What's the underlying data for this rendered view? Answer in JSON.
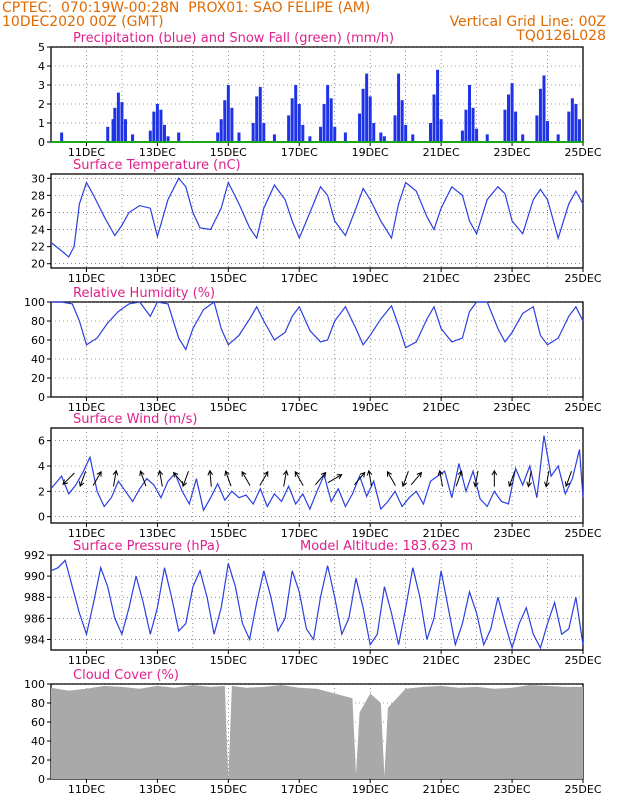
{
  "header": {
    "line1_left": "CPTEC:  070:19W-00:28N  PROX01: SAO FELIPE (AM)",
    "line2_left": "10DEC2020 00Z (GMT)",
    "line2_right": "Vertical Grid Line: 00Z",
    "line3_right": "TQ0126L028"
  },
  "colors": {
    "header": "#e06a00",
    "title": "#e0208c",
    "line": "#2b3fe0",
    "precip": "#1e32e6",
    "snow": "#1aa51a",
    "cloud": "#a9a9a9",
    "arrow": "#000000"
  },
  "x_ticks": [
    "11DEC",
    "13DEC",
    "15DEC",
    "17DEC",
    "19DEC",
    "21DEC",
    "23DEC",
    "25DEC"
  ],
  "chart_data": [
    {
      "type": "bar",
      "title": "Precipitation (blue) and Snow Fall (green) (mm/h)",
      "xlabel": "",
      "ylabel": "",
      "ylim": [
        0,
        5
      ],
      "yticks": [
        0,
        1,
        2,
        3,
        4,
        5
      ],
      "x_range_days": [
        0,
        15
      ],
      "series": [
        {
          "name": "Precipitation (blue)",
          "x": [
            0.3,
            1.6,
            1.75,
            1.8,
            1.9,
            2.0,
            2.1,
            2.3,
            2.8,
            2.9,
            3.0,
            3.1,
            3.2,
            3.3,
            3.6,
            4.7,
            4.8,
            4.9,
            5.0,
            5.1,
            5.3,
            5.7,
            5.8,
            5.9,
            6.0,
            6.3,
            6.7,
            6.8,
            6.9,
            7.0,
            7.1,
            7.3,
            7.6,
            7.7,
            7.8,
            7.9,
            8.0,
            8.3,
            8.7,
            8.8,
            8.9,
            9.0,
            9.1,
            9.3,
            9.4,
            9.7,
            9.8,
            9.9,
            10.0,
            10.2,
            10.7,
            10.8,
            10.9,
            11.0,
            11.6,
            11.7,
            11.8,
            11.9,
            12.0,
            12.3,
            12.8,
            12.9,
            13.0,
            13.1,
            13.3,
            13.7,
            13.8,
            13.9,
            14.0,
            14.3,
            14.6,
            14.7,
            14.8,
            14.9
          ],
          "values": [
            0.5,
            0.8,
            1.2,
            1.8,
            2.6,
            2.1,
            1.2,
            0.4,
            0.6,
            1.6,
            2.0,
            1.7,
            0.9,
            0.3,
            0.5,
            0.5,
            1.2,
            2.2,
            3.0,
            1.8,
            0.5,
            1.0,
            2.4,
            2.9,
            1.0,
            0.4,
            1.4,
            2.3,
            3.0,
            2.0,
            0.9,
            0.3,
            0.8,
            2.0,
            3.0,
            2.3,
            0.8,
            0.5,
            1.5,
            2.8,
            3.6,
            2.4,
            1.0,
            0.5,
            0.3,
            1.4,
            3.6,
            2.2,
            0.9,
            0.4,
            1.0,
            2.5,
            3.8,
            1.2,
            0.6,
            1.7,
            3.0,
            1.8,
            0.7,
            0.4,
            1.7,
            2.5,
            3.1,
            1.6,
            0.4,
            1.4,
            2.8,
            3.5,
            1.1,
            0.4,
            1.6,
            2.3,
            2.0,
            1.2
          ]
        },
        {
          "name": "Snow Fall (green)",
          "x": [
            0,
            15
          ],
          "values": [
            0,
            0
          ]
        }
      ]
    },
    {
      "type": "line",
      "title": "Surface Temperature (nC)",
      "xlabel": "",
      "ylabel": "",
      "ylim": [
        19.5,
        30.5
      ],
      "yticks": [
        20,
        22,
        24,
        26,
        28,
        30
      ],
      "x_range_days": [
        0,
        15
      ],
      "series": [
        {
          "name": "",
          "x": [
            0,
            0.3,
            0.5,
            0.65,
            0.8,
            1.0,
            1.2,
            1.5,
            1.8,
            2.0,
            2.2,
            2.5,
            2.8,
            3.0,
            3.3,
            3.6,
            3.8,
            4.0,
            4.2,
            4.5,
            4.8,
            5.0,
            5.3,
            5.6,
            5.8,
            6.0,
            6.3,
            6.6,
            6.8,
            7.0,
            7.3,
            7.6,
            7.8,
            8.0,
            8.3,
            8.6,
            8.8,
            9.0,
            9.3,
            9.6,
            9.8,
            10.0,
            10.3,
            10.6,
            10.8,
            11.0,
            11.3,
            11.6,
            11.8,
            12.0,
            12.3,
            12.6,
            12.8,
            13.0,
            13.3,
            13.6,
            13.8,
            14.0,
            14.3,
            14.6,
            14.8,
            15.0
          ],
          "values": [
            22.5,
            21.5,
            20.8,
            22.0,
            27.0,
            29.5,
            28.0,
            25.5,
            23.3,
            24.5,
            26.0,
            26.8,
            26.5,
            23.2,
            27.5,
            30.0,
            29.0,
            26.0,
            24.2,
            24.0,
            26.5,
            29.5,
            27.0,
            24.2,
            23.0,
            26.5,
            29.2,
            27.5,
            25.0,
            23.0,
            26.0,
            29.0,
            28.0,
            25.0,
            23.3,
            26.5,
            28.8,
            27.5,
            25.0,
            23.0,
            27.0,
            29.5,
            28.5,
            25.5,
            24.0,
            26.5,
            29.0,
            28.0,
            25.0,
            23.5,
            27.5,
            29.0,
            28.2,
            25.0,
            23.5,
            27.5,
            28.7,
            27.5,
            23.0,
            27.0,
            28.5,
            27.0
          ]
        }
      ]
    },
    {
      "type": "line",
      "title": "Relative Humidity (%)",
      "xlabel": "",
      "ylabel": "",
      "ylim": [
        0,
        100
      ],
      "yticks": [
        0,
        20,
        40,
        60,
        80,
        100
      ],
      "x_range_days": [
        0,
        15
      ],
      "series": [
        {
          "name": "",
          "x": [
            0,
            0.3,
            0.6,
            0.8,
            1.0,
            1.3,
            1.6,
            1.9,
            2.2,
            2.5,
            2.8,
            3.0,
            3.3,
            3.6,
            3.8,
            4.0,
            4.3,
            4.6,
            4.8,
            5.0,
            5.3,
            5.6,
            5.8,
            6.0,
            6.3,
            6.6,
            6.8,
            7.0,
            7.3,
            7.6,
            7.8,
            8.0,
            8.3,
            8.6,
            8.8,
            9.0,
            9.3,
            9.6,
            9.8,
            10.0,
            10.3,
            10.6,
            10.8,
            11.0,
            11.3,
            11.6,
            11.8,
            12.0,
            12.3,
            12.6,
            12.8,
            13.0,
            13.3,
            13.6,
            13.8,
            14.0,
            14.3,
            14.6,
            14.8,
            15.0
          ],
          "values": [
            100,
            100,
            98,
            80,
            55,
            62,
            78,
            90,
            98,
            100,
            85,
            100,
            98,
            62,
            50,
            72,
            92,
            100,
            72,
            55,
            65,
            82,
            95,
            80,
            60,
            68,
            85,
            95,
            70,
            58,
            60,
            80,
            95,
            72,
            55,
            65,
            82,
            96,
            75,
            52,
            58,
            82,
            95,
            72,
            58,
            62,
            90,
            100,
            100,
            72,
            58,
            68,
            88,
            95,
            65,
            55,
            62,
            85,
            95,
            80
          ]
        }
      ]
    },
    {
      "type": "line",
      "title": "Surface Wind (m/s)",
      "xlabel": "",
      "ylabel": "",
      "ylim": [
        -0.5,
        7
      ],
      "yticks": [
        0,
        2,
        4,
        6
      ],
      "x_range_days": [
        0,
        15
      ],
      "series": [
        {
          "name": "",
          "x": [
            0,
            0.3,
            0.5,
            0.7,
            0.9,
            1.1,
            1.3,
            1.5,
            1.7,
            1.9,
            2.1,
            2.3,
            2.5,
            2.7,
            2.9,
            3.1,
            3.3,
            3.5,
            3.7,
            3.9,
            4.1,
            4.3,
            4.5,
            4.7,
            4.9,
            5.1,
            5.3,
            5.5,
            5.7,
            5.9,
            6.1,
            6.3,
            6.5,
            6.7,
            6.9,
            7.1,
            7.3,
            7.5,
            7.7,
            7.9,
            8.1,
            8.3,
            8.5,
            8.7,
            8.9,
            9.1,
            9.3,
            9.5,
            9.7,
            9.9,
            10.1,
            10.3,
            10.5,
            10.7,
            10.9,
            11.1,
            11.3,
            11.5,
            11.7,
            11.9,
            12.1,
            12.3,
            12.5,
            12.7,
            12.9,
            13.1,
            13.3,
            13.5,
            13.7,
            13.9,
            14.1,
            14.3,
            14.5,
            14.7,
            14.9,
            15.0
          ],
          "values": [
            2.2,
            3.2,
            1.8,
            2.5,
            3.5,
            4.7,
            2.0,
            0.8,
            1.5,
            2.8,
            2.0,
            1.2,
            2.2,
            3.0,
            2.5,
            1.5,
            2.8,
            3.4,
            2.0,
            1.0,
            3.0,
            0.5,
            1.5,
            2.6,
            1.3,
            2.0,
            1.5,
            1.7,
            1.0,
            2.2,
            0.8,
            1.8,
            1.2,
            2.4,
            1.0,
            1.8,
            0.6,
            2.0,
            3.3,
            1.2,
            2.2,
            0.8,
            1.8,
            3.2,
            1.6,
            2.8,
            0.6,
            1.2,
            2.0,
            0.8,
            1.5,
            2.0,
            1.0,
            2.8,
            3.2,
            3.6,
            1.5,
            4.2,
            2.0,
            3.6,
            1.4,
            0.8,
            2.0,
            1.2,
            1.0,
            3.8,
            2.5,
            4.0,
            1.5,
            6.4,
            3.2,
            4.0,
            1.8,
            3.0,
            5.3,
            1.5
          ]
        }
      ],
      "wind_arrows": [
        {
          "day": 0.5,
          "deg": 225
        },
        {
          "day": 0.9,
          "deg": 200
        },
        {
          "day": 1.3,
          "deg": 30
        },
        {
          "day": 1.8,
          "deg": 10
        },
        {
          "day": 2.6,
          "deg": 340
        },
        {
          "day": 3.1,
          "deg": 350
        },
        {
          "day": 3.6,
          "deg": 320
        },
        {
          "day": 3.8,
          "deg": 200
        },
        {
          "day": 4.5,
          "deg": 355
        },
        {
          "day": 5.0,
          "deg": 340
        },
        {
          "day": 5.5,
          "deg": 330
        },
        {
          "day": 6.0,
          "deg": 30
        },
        {
          "day": 6.6,
          "deg": 10
        },
        {
          "day": 7.0,
          "deg": 330
        },
        {
          "day": 7.6,
          "deg": 40
        },
        {
          "day": 8.0,
          "deg": 60
        },
        {
          "day": 8.7,
          "deg": 40
        },
        {
          "day": 9.0,
          "deg": 350
        },
        {
          "day": 9.6,
          "deg": 330
        },
        {
          "day": 10.0,
          "deg": 200
        },
        {
          "day": 10.3,
          "deg": 40
        },
        {
          "day": 11.0,
          "deg": 350
        },
        {
          "day": 11.5,
          "deg": 20
        },
        {
          "day": 12.0,
          "deg": 190
        },
        {
          "day": 12.5,
          "deg": 0
        },
        {
          "day": 13.0,
          "deg": 200
        },
        {
          "day": 13.5,
          "deg": 190
        },
        {
          "day": 14.0,
          "deg": 190
        },
        {
          "day": 14.6,
          "deg": 200
        }
      ]
    },
    {
      "type": "line",
      "title": "Surface Pressure (hPa)",
      "annotation": "Model Altitude: 183.623 m",
      "xlabel": "",
      "ylabel": "",
      "ylim": [
        983,
        992
      ],
      "yticks": [
        984,
        986,
        988,
        990,
        992
      ],
      "x_range_days": [
        0,
        15
      ],
      "series": [
        {
          "name": "",
          "x": [
            0,
            0.2,
            0.4,
            0.6,
            0.8,
            1.0,
            1.2,
            1.4,
            1.6,
            1.8,
            2.0,
            2.2,
            2.4,
            2.6,
            2.8,
            3.0,
            3.2,
            3.4,
            3.6,
            3.8,
            4.0,
            4.2,
            4.4,
            4.6,
            4.8,
            5.0,
            5.2,
            5.4,
            5.6,
            5.8,
            6.0,
            6.2,
            6.4,
            6.6,
            6.8,
            7.0,
            7.2,
            7.4,
            7.6,
            7.8,
            8.0,
            8.2,
            8.4,
            8.6,
            8.8,
            9.0,
            9.2,
            9.4,
            9.6,
            9.8,
            10.0,
            10.2,
            10.4,
            10.6,
            10.8,
            11.0,
            11.2,
            11.4,
            11.6,
            11.8,
            12.0,
            12.2,
            12.4,
            12.6,
            12.8,
            13.0,
            13.2,
            13.4,
            13.6,
            13.8,
            14.0,
            14.2,
            14.4,
            14.6,
            14.8,
            15.0
          ],
          "values": [
            990.5,
            990.8,
            991.5,
            989.0,
            986.5,
            984.5,
            987.5,
            990.8,
            989.0,
            986.0,
            984.5,
            987.0,
            990.0,
            987.5,
            984.5,
            987.0,
            990.8,
            988.0,
            984.8,
            985.5,
            989.0,
            990.5,
            988.0,
            984.5,
            987.0,
            991.2,
            989.0,
            985.5,
            984.0,
            987.5,
            990.5,
            988.0,
            984.8,
            986.0,
            990.5,
            988.5,
            985.0,
            984.0,
            988.0,
            991.0,
            988.0,
            984.5,
            986.0,
            989.8,
            987.0,
            983.5,
            984.5,
            989.0,
            986.5,
            983.5,
            987.0,
            990.8,
            988.0,
            984.0,
            986.0,
            990.5,
            987.0,
            983.5,
            985.5,
            988.5,
            986.5,
            983.5,
            985.0,
            988.0,
            985.5,
            983.2,
            985.5,
            987.0,
            984.5,
            983.2,
            985.5,
            987.5,
            984.5,
            985.0,
            988.0,
            983.5
          ]
        }
      ]
    },
    {
      "type": "area",
      "title": "Cloud Cover (%)",
      "xlabel": "",
      "ylabel": "",
      "ylim": [
        0,
        100
      ],
      "yticks": [
        0,
        20,
        40,
        60,
        80,
        100
      ],
      "x_range_days": [
        0,
        15
      ],
      "series": [
        {
          "name": "",
          "x": [
            0,
            0.5,
            1.0,
            1.5,
            2.0,
            2.5,
            3.0,
            3.5,
            4.0,
            4.5,
            4.9,
            5.0,
            5.1,
            5.5,
            6.0,
            6.5,
            7.0,
            7.5,
            8.0,
            8.5,
            8.6,
            8.7,
            9.0,
            9.3,
            9.4,
            9.5,
            10.0,
            10.5,
            11.0,
            11.5,
            12.0,
            12.5,
            13.0,
            13.5,
            14.0,
            14.5,
            15.0
          ],
          "values": [
            96,
            93,
            95,
            98,
            97,
            95,
            98,
            96,
            99,
            97,
            98,
            0,
            98,
            96,
            97,
            99,
            96,
            95,
            90,
            85,
            5,
            70,
            90,
            80,
            3,
            75,
            95,
            97,
            98,
            96,
            97,
            95,
            96,
            99,
            98,
            97,
            97
          ]
        }
      ]
    }
  ]
}
